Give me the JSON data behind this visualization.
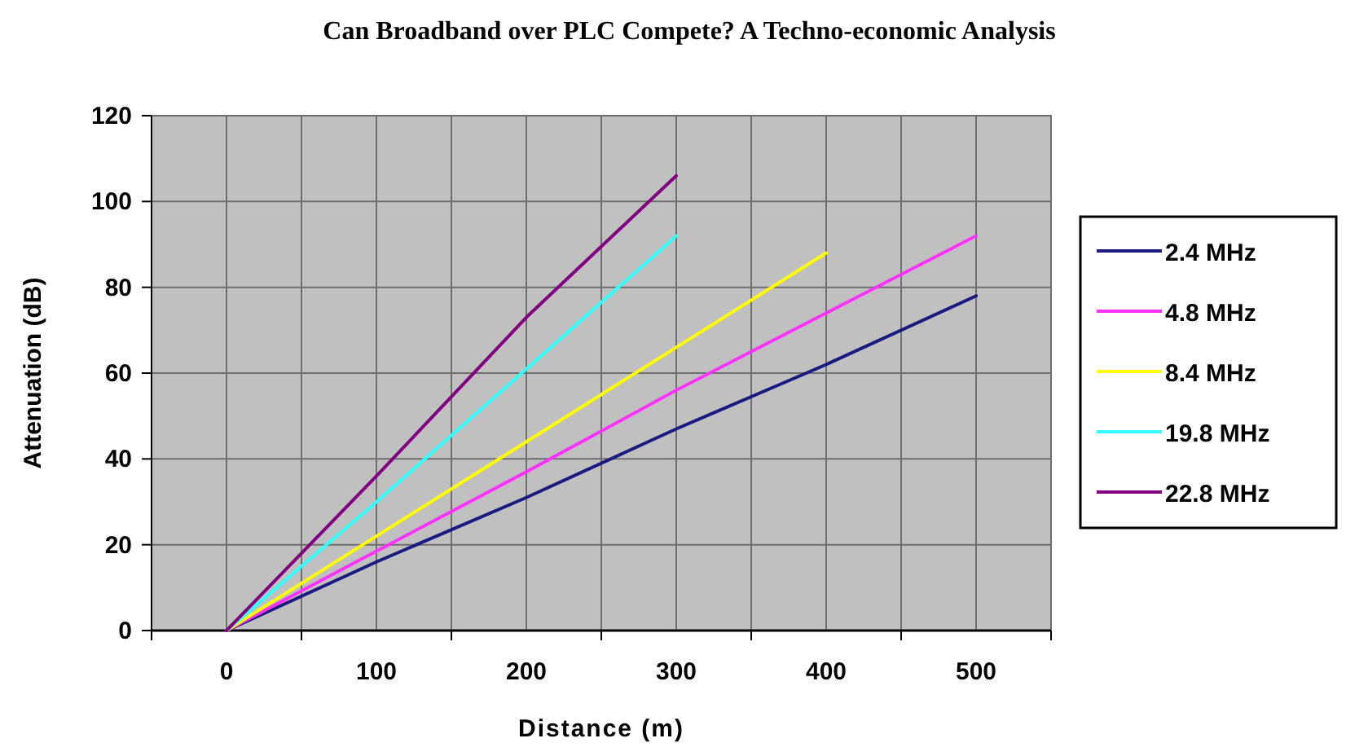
{
  "chart_data": {
    "type": "line",
    "title": "Can Broadband over PLC Compete? A Techno-economic Analysis",
    "xlabel": "Distance (m)",
    "ylabel": "Attenuation (dB)",
    "xlim": [
      -50,
      550
    ],
    "xticks": [
      {
        "value": -50,
        "label": null
      },
      0,
      {
        "value": 50,
        "label": null
      },
      100,
      {
        "value": 150,
        "label": null
      },
      200,
      {
        "value": 250,
        "label": null
      },
      300,
      {
        "value": 350,
        "label": null
      },
      400,
      {
        "value": 450,
        "label": null
      },
      500,
      {
        "value": 550,
        "label": null
      }
    ],
    "ylim": [
      0,
      120
    ],
    "yticks": [
      0,
      20,
      40,
      60,
      80,
      100,
      120
    ],
    "grid": true,
    "legend": "right",
    "marker": "none",
    "line_style": "solid",
    "series": [
      {
        "name": "2.4 MHz",
        "color": "#1a1a80",
        "x": [
          0,
          100,
          200,
          300,
          400,
          500
        ],
        "values": [
          0,
          16,
          31,
          47,
          62,
          78
        ]
      },
      {
        "name": "4.8 MHz",
        "color": "#ff33ff",
        "x": [
          0,
          100,
          200,
          300,
          400,
          500
        ],
        "values": [
          0,
          18.5,
          37,
          56,
          74,
          92
        ]
      },
      {
        "name": "8.4 MHz",
        "color": "#ffff00",
        "x": [
          0,
          100,
          200,
          300,
          400
        ],
        "values": [
          0,
          22,
          44,
          66,
          88
        ]
      },
      {
        "name": "19.8 MHz",
        "color": "#33ffff",
        "x": [
          0,
          100,
          200,
          300
        ],
        "values": [
          0,
          30,
          61,
          92
        ]
      },
      {
        "name": "22.8 MHz",
        "color": "#800080",
        "x": [
          0,
          100,
          200,
          300
        ],
        "values": [
          0,
          36,
          73,
          106
        ]
      }
    ]
  }
}
